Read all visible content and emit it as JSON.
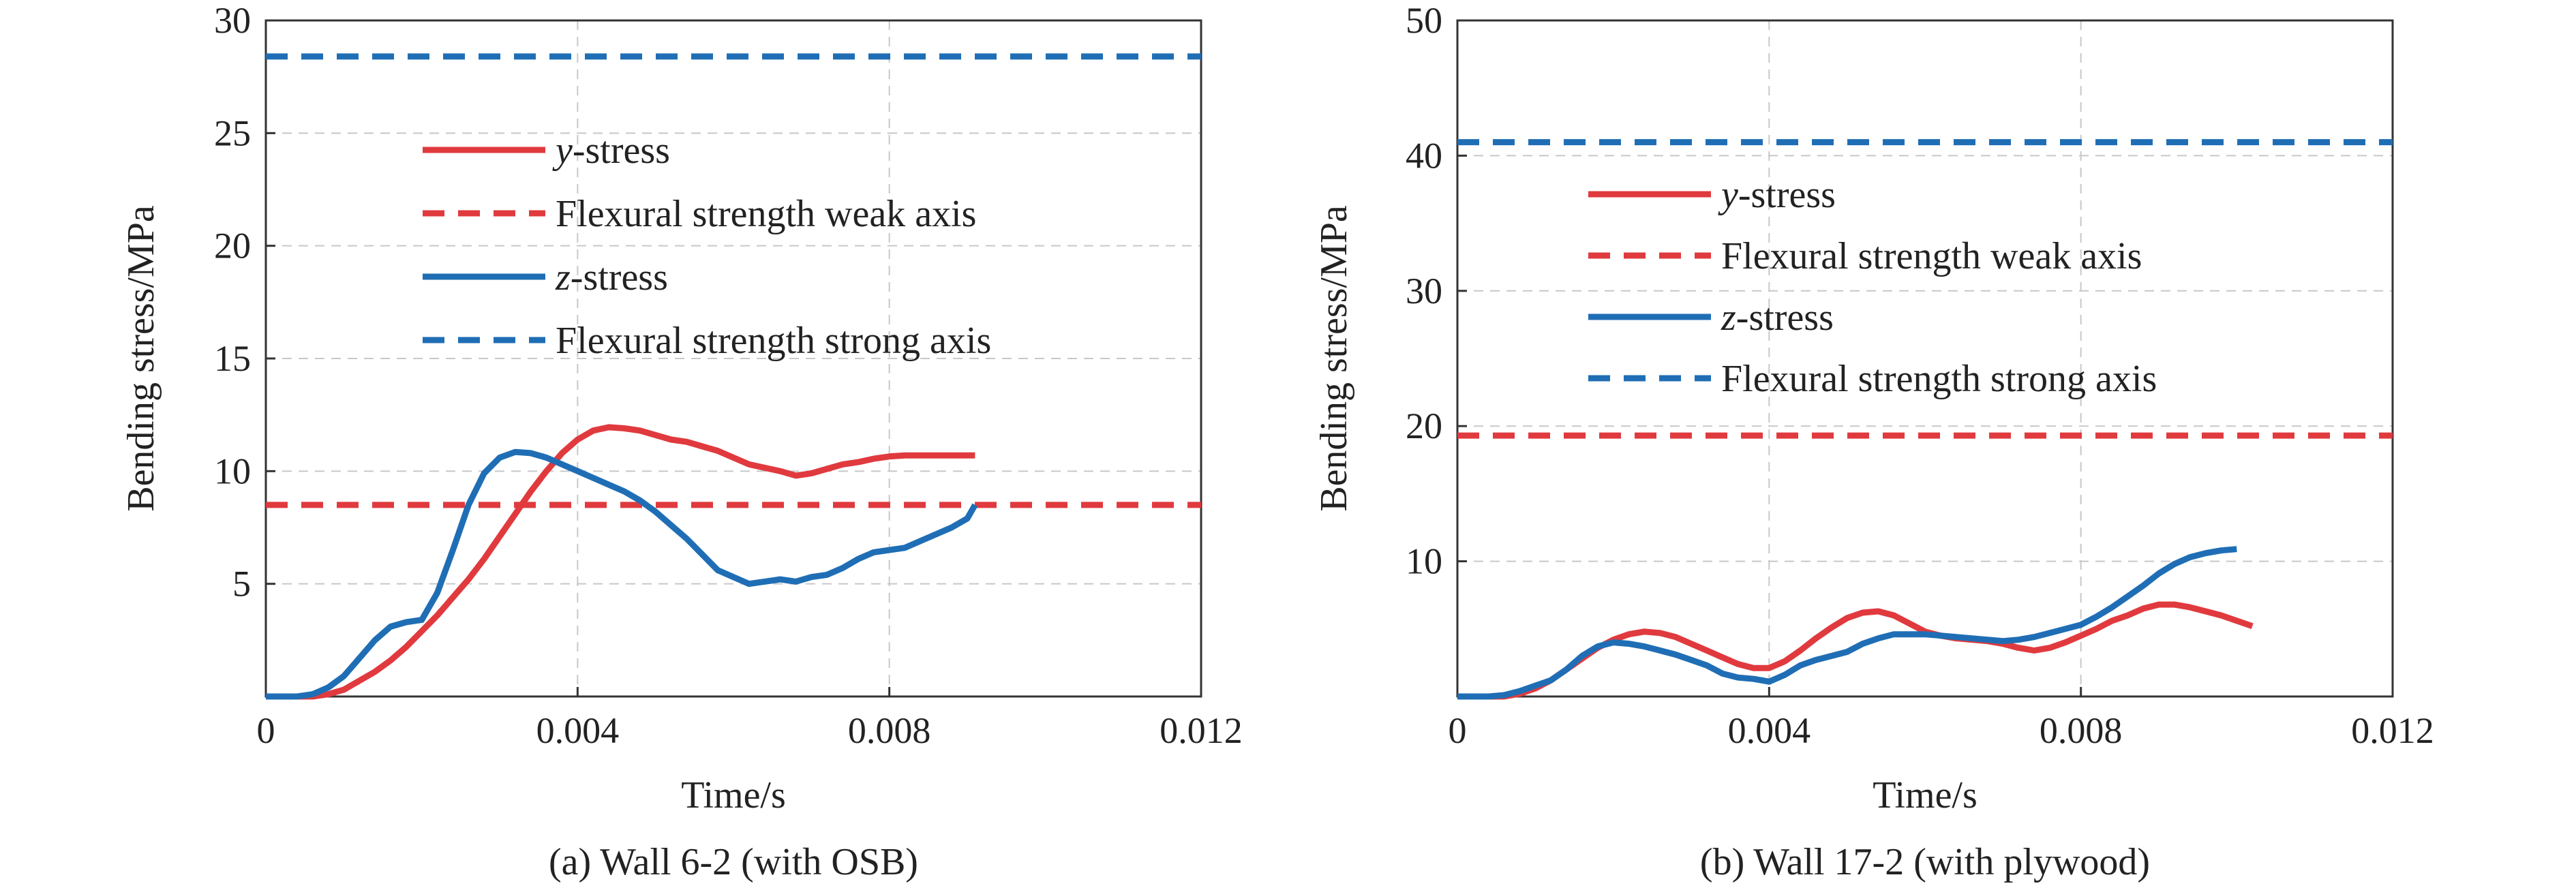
{
  "chart_data": [
    {
      "type": "line",
      "caption": "(a) Wall 6-2 (with OSB)",
      "xlabel": "Time/s",
      "ylabel": "Bending stress/MPa",
      "xlim": [
        0,
        0.012
      ],
      "ylim": [
        0,
        30
      ],
      "xticks": [
        0,
        0.004,
        0.008,
        0.012
      ],
      "xtick_labels": [
        "0",
        "0.004",
        "0.008",
        "0.012"
      ],
      "yticks": [
        5,
        10,
        15,
        20,
        25,
        30
      ],
      "ytick_labels": [
        "5",
        "10",
        "15",
        "20",
        "25",
        "30"
      ],
      "grid": true,
      "legend_position": "upper-center",
      "series": [
        {
          "name": "y-stress",
          "name_italic": "y",
          "name_rest": "-stress",
          "style": "solid",
          "color": "#e03a3e",
          "x": [
            0,
            0.0006,
            0.0008,
            0.001,
            0.0012,
            0.0014,
            0.0016,
            0.0018,
            0.002,
            0.0022,
            0.0024,
            0.0026,
            0.0028,
            0.003,
            0.0032,
            0.0034,
            0.0036,
            0.0038,
            0.004,
            0.0042,
            0.0044,
            0.0046,
            0.0048,
            0.005,
            0.0052,
            0.0054,
            0.0056,
            0.0058,
            0.006,
            0.0062,
            0.0064,
            0.0066,
            0.0068,
            0.007,
            0.0072,
            0.0074,
            0.0076,
            0.0078,
            0.008,
            0.0082,
            0.0086,
            0.0091
          ],
          "y": [
            0,
            0,
            0.1,
            0.3,
            0.7,
            1.1,
            1.6,
            2.2,
            2.9,
            3.6,
            4.4,
            5.2,
            6.1,
            7.1,
            8.1,
            9.1,
            10.0,
            10.8,
            11.4,
            11.8,
            11.95,
            11.9,
            11.8,
            11.6,
            11.4,
            11.3,
            11.1,
            10.9,
            10.6,
            10.3,
            10.15,
            10.0,
            9.8,
            9.9,
            10.1,
            10.3,
            10.4,
            10.55,
            10.65,
            10.7,
            10.7,
            10.7
          ]
        },
        {
          "name": "Flexural strength weak axis",
          "style": "dashed",
          "color": "#e03a3e",
          "x": [
            0,
            0.012
          ],
          "y": [
            8.5,
            8.5
          ]
        },
        {
          "name": "z-stress",
          "name_italic": "z",
          "name_rest": "-stress",
          "style": "solid",
          "color": "#1f6eb5",
          "x": [
            0,
            0.0004,
            0.0006,
            0.0008,
            0.001,
            0.0012,
            0.0014,
            0.0016,
            0.0018,
            0.002,
            0.0022,
            0.0024,
            0.0026,
            0.0028,
            0.003,
            0.0032,
            0.0034,
            0.0036,
            0.0038,
            0.004,
            0.0042,
            0.0044,
            0.0046,
            0.0048,
            0.005,
            0.0052,
            0.0054,
            0.0056,
            0.0058,
            0.006,
            0.0062,
            0.0064,
            0.0066,
            0.0068,
            0.007,
            0.0072,
            0.0074,
            0.0076,
            0.0078,
            0.008,
            0.0082,
            0.0084,
            0.0086,
            0.0088,
            0.009,
            0.0091
          ],
          "y": [
            0,
            0,
            0.1,
            0.4,
            0.9,
            1.7,
            2.5,
            3.1,
            3.3,
            3.4,
            4.6,
            6.5,
            8.5,
            9.9,
            10.6,
            10.85,
            10.8,
            10.6,
            10.3,
            10.0,
            9.7,
            9.4,
            9.1,
            8.7,
            8.2,
            7.6,
            7.0,
            6.3,
            5.6,
            5.3,
            5.0,
            5.1,
            5.2,
            5.1,
            5.3,
            5.4,
            5.7,
            6.1,
            6.4,
            6.5,
            6.6,
            6.9,
            7.2,
            7.5,
            7.9,
            8.5
          ]
        },
        {
          "name": "Flexural strength strong axis",
          "style": "dashed",
          "color": "#1f6eb5",
          "x": [
            0,
            0.012
          ],
          "y": [
            28.4,
            28.4
          ]
        }
      ]
    },
    {
      "type": "line",
      "caption": "(b) Wall 17-2 (with plywood)",
      "xlabel": "Time/s",
      "ylabel": "Bending stress/MPa",
      "xlim": [
        0,
        0.012
      ],
      "ylim": [
        0,
        50
      ],
      "xticks": [
        0,
        0.004,
        0.008,
        0.012
      ],
      "xtick_labels": [
        "0",
        "0.004",
        "0.008",
        "0.012"
      ],
      "yticks": [
        10,
        20,
        30,
        40,
        50
      ],
      "ytick_labels": [
        "10",
        "20",
        "30",
        "40",
        "50"
      ],
      "grid": true,
      "legend_position": "upper-center",
      "series": [
        {
          "name": "y-stress",
          "name_italic": "y",
          "name_rest": "-stress",
          "style": "solid",
          "color": "#e03a3e",
          "x": [
            0,
            0.0006,
            0.0008,
            0.001,
            0.0012,
            0.0014,
            0.0016,
            0.0018,
            0.002,
            0.0022,
            0.0024,
            0.0026,
            0.0028,
            0.003,
            0.0032,
            0.0034,
            0.0036,
            0.0038,
            0.004,
            0.0042,
            0.0044,
            0.0046,
            0.0048,
            0.005,
            0.0052,
            0.0054,
            0.0056,
            0.0058,
            0.006,
            0.0062,
            0.0064,
            0.0066,
            0.0068,
            0.007,
            0.0072,
            0.0074,
            0.0076,
            0.0078,
            0.008,
            0.0082,
            0.0084,
            0.0086,
            0.0088,
            0.009,
            0.0092,
            0.0094,
            0.0096,
            0.0098,
            0.01,
            0.0102
          ],
          "y": [
            0,
            0,
            0.2,
            0.6,
            1.2,
            2.0,
            2.8,
            3.6,
            4.2,
            4.6,
            4.8,
            4.7,
            4.4,
            3.9,
            3.4,
            2.9,
            2.4,
            2.1,
            2.1,
            2.6,
            3.4,
            4.3,
            5.1,
            5.8,
            6.2,
            6.3,
            6.0,
            5.4,
            4.8,
            4.5,
            4.3,
            4.2,
            4.1,
            3.9,
            3.6,
            3.4,
            3.6,
            4.0,
            4.5,
            5.0,
            5.6,
            6.0,
            6.5,
            6.8,
            6.8,
            6.6,
            6.3,
            6.0,
            5.6,
            5.2
          ]
        },
        {
          "name": "Flexural strength weak axis",
          "style": "dashed",
          "color": "#e03a3e",
          "x": [
            0,
            0.012
          ],
          "y": [
            19.3,
            19.3
          ]
        },
        {
          "name": "z-stress",
          "name_italic": "z",
          "name_rest": "-stress",
          "style": "solid",
          "color": "#1f6eb5",
          "x": [
            0,
            0.0004,
            0.0006,
            0.0008,
            0.001,
            0.0012,
            0.0014,
            0.0016,
            0.0018,
            0.002,
            0.0022,
            0.0024,
            0.0026,
            0.0028,
            0.003,
            0.0032,
            0.0034,
            0.0036,
            0.0038,
            0.004,
            0.0042,
            0.0044,
            0.0046,
            0.0048,
            0.005,
            0.0052,
            0.0054,
            0.0056,
            0.0058,
            0.006,
            0.0062,
            0.0064,
            0.0066,
            0.0068,
            0.007,
            0.0072,
            0.0074,
            0.0076,
            0.0078,
            0.008,
            0.0082,
            0.0084,
            0.0086,
            0.0088,
            0.009,
            0.0092,
            0.0094,
            0.0096,
            0.0098,
            0.01
          ],
          "y": [
            0,
            0,
            0.1,
            0.4,
            0.8,
            1.2,
            2.0,
            3.0,
            3.7,
            4.0,
            3.9,
            3.7,
            3.4,
            3.1,
            2.7,
            2.3,
            1.7,
            1.4,
            1.3,
            1.1,
            1.6,
            2.3,
            2.7,
            3.0,
            3.3,
            3.9,
            4.3,
            4.6,
            4.6,
            4.6,
            4.5,
            4.4,
            4.3,
            4.2,
            4.1,
            4.2,
            4.4,
            4.7,
            5.0,
            5.3,
            5.9,
            6.6,
            7.4,
            8.2,
            9.1,
            9.8,
            10.3,
            10.6,
            10.8,
            10.9
          ]
        },
        {
          "name": "Flexural strength strong axis",
          "style": "dashed",
          "color": "#1f6eb5",
          "x": [
            0,
            0.012
          ],
          "y": [
            41.0,
            41.0
          ]
        }
      ]
    }
  ]
}
